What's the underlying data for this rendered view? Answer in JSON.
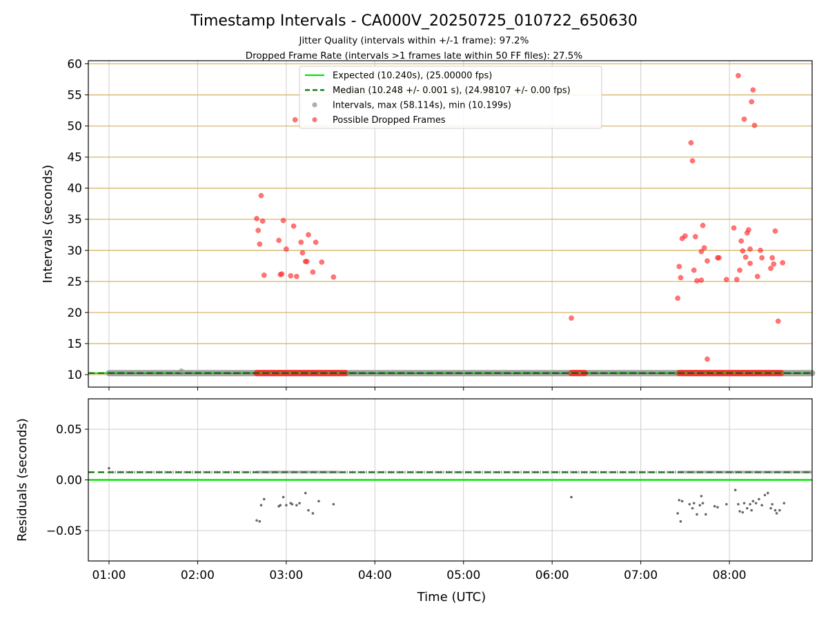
{
  "title": "Timestamp Intervals - CA000V_20250725_010722_650630",
  "subtitle_lines": [
    "Jitter Quality (intervals within +/-1 frame): 97.2%",
    "Dropped Frame Rate (intervals >1 frames late within 50 FF files): 27.5%"
  ],
  "colors": {
    "expected": "#00e600",
    "median": "#007000",
    "intervals": "#9a9a9a",
    "dropped": "#ff2a2a",
    "residual_points": "#666666",
    "gold_grid": "#d6b66a",
    "grid": "#cccccc"
  },
  "chart_data": [
    {
      "type": "scatter",
      "panel": "intervals",
      "ylabel": "Intervals (seconds)",
      "xlabel": "",
      "ylim": [
        8,
        60.5
      ],
      "xlim": [
        "00:46",
        "08:56"
      ],
      "yticks": [
        10,
        15,
        20,
        25,
        30,
        35,
        40,
        45,
        50,
        55,
        60
      ],
      "grid": true,
      "legend_position": "top-center",
      "expected_value": 10.24,
      "median_value": 10.248,
      "legend": [
        {
          "key": "expected",
          "label": "Expected (10.240s), (25.00000 fps)"
        },
        {
          "key": "median",
          "label": "Median (10.248 +/- 0.001 s), (24.98107 +/- 0.00 fps)"
        },
        {
          "key": "intervals",
          "label": "Intervals, max (58.114s), min (10.199s)"
        },
        {
          "key": "dropped",
          "label": "Possible Dropped Frames"
        }
      ],
      "baseline_segments": [
        {
          "series": "intervals",
          "x": [
            "01:00",
            "08:56"
          ],
          "y": 10.25
        },
        {
          "series": "dropped",
          "x": [
            "02:40",
            "03:40"
          ],
          "y": 10.26
        },
        {
          "series": "dropped",
          "x": [
            "06:13",
            "06:22"
          ],
          "y": 10.26
        },
        {
          "series": "dropped",
          "x": [
            "07:26",
            "08:35"
          ],
          "y": 10.26
        }
      ],
      "interval_points": [
        {
          "x": "01:49",
          "y": 10.6
        }
      ],
      "dropped_points": [
        {
          "x": "02:40",
          "y": 35.1
        },
        {
          "x": "02:41",
          "y": 33.2
        },
        {
          "x": "02:42",
          "y": 31.0
        },
        {
          "x": "02:43",
          "y": 38.8
        },
        {
          "x": "02:44",
          "y": 34.7
        },
        {
          "x": "02:45",
          "y": 26.0
        },
        {
          "x": "02:55",
          "y": 31.6
        },
        {
          "x": "02:56",
          "y": 26.1
        },
        {
          "x": "02:57",
          "y": 26.2
        },
        {
          "x": "02:58",
          "y": 34.8
        },
        {
          "x": "03:00",
          "y": 30.2
        },
        {
          "x": "03:03",
          "y": 25.9
        },
        {
          "x": "03:05",
          "y": 33.9
        },
        {
          "x": "03:06",
          "y": 51.0
        },
        {
          "x": "03:07",
          "y": 25.8
        },
        {
          "x": "03:10",
          "y": 31.3
        },
        {
          "x": "03:11",
          "y": 29.6
        },
        {
          "x": "03:13",
          "y": 28.2
        },
        {
          "x": "03:14",
          "y": 28.2
        },
        {
          "x": "03:15",
          "y": 32.5
        },
        {
          "x": "03:18",
          "y": 26.5
        },
        {
          "x": "03:20",
          "y": 31.3
        },
        {
          "x": "03:24",
          "y": 28.1
        },
        {
          "x": "03:32",
          "y": 25.7
        },
        {
          "x": "06:13",
          "y": 19.1
        },
        {
          "x": "07:25",
          "y": 22.3
        },
        {
          "x": "07:26",
          "y": 27.4
        },
        {
          "x": "07:27",
          "y": 25.6
        },
        {
          "x": "07:28",
          "y": 31.9
        },
        {
          "x": "07:30",
          "y": 32.3
        },
        {
          "x": "07:34",
          "y": 47.3
        },
        {
          "x": "07:35",
          "y": 44.4
        },
        {
          "x": "07:36",
          "y": 26.8
        },
        {
          "x": "07:37",
          "y": 32.2
        },
        {
          "x": "07:38",
          "y": 25.1
        },
        {
          "x": "07:41",
          "y": 25.2
        },
        {
          "x": "07:41",
          "y": 29.8
        },
        {
          "x": "07:42",
          "y": 34.0
        },
        {
          "x": "07:43",
          "y": 30.4
        },
        {
          "x": "07:45",
          "y": 12.5
        },
        {
          "x": "07:45",
          "y": 28.3
        },
        {
          "x": "07:52",
          "y": 28.8
        },
        {
          "x": "07:53",
          "y": 28.8
        },
        {
          "x": "07:58",
          "y": 25.3
        },
        {
          "x": "08:03",
          "y": 33.6
        },
        {
          "x": "08:05",
          "y": 25.3
        },
        {
          "x": "08:06",
          "y": 58.1
        },
        {
          "x": "08:07",
          "y": 26.8
        },
        {
          "x": "08:08",
          "y": 31.5
        },
        {
          "x": "08:09",
          "y": 29.9
        },
        {
          "x": "08:10",
          "y": 51.1
        },
        {
          "x": "08:11",
          "y": 28.9
        },
        {
          "x": "08:12",
          "y": 32.8
        },
        {
          "x": "08:13",
          "y": 33.3
        },
        {
          "x": "08:14",
          "y": 30.2
        },
        {
          "x": "08:14",
          "y": 27.9
        },
        {
          "x": "08:15",
          "y": 53.9
        },
        {
          "x": "08:16",
          "y": 55.8
        },
        {
          "x": "08:17",
          "y": 50.1
        },
        {
          "x": "08:19",
          "y": 25.8
        },
        {
          "x": "08:21",
          "y": 30.0
        },
        {
          "x": "08:22",
          "y": 28.8
        },
        {
          "x": "08:28",
          "y": 27.1
        },
        {
          "x": "08:29",
          "y": 28.8
        },
        {
          "x": "08:30",
          "y": 27.8
        },
        {
          "x": "08:31",
          "y": 33.1
        },
        {
          "x": "08:33",
          "y": 18.6
        },
        {
          "x": "08:36",
          "y": 28.0
        }
      ]
    },
    {
      "type": "scatter",
      "panel": "residuals",
      "ylabel": "Residuals (seconds)",
      "xlabel": "Time (UTC)",
      "ylim": [
        -0.08,
        0.08
      ],
      "xlim": [
        "00:46",
        "08:56"
      ],
      "yticks": [
        -0.05,
        0,
        0.05
      ],
      "ytick_labels": [
        "−0.05",
        "0.00",
        "0.05"
      ],
      "xticks": [
        "01:00",
        "02:00",
        "03:00",
        "04:00",
        "05:00",
        "06:00",
        "07:00",
        "08:00"
      ],
      "grid": true,
      "expected_value": 0.0,
      "median_value": 0.0076,
      "residual_bands": [
        {
          "x": [
            "01:00",
            "08:56"
          ],
          "y": 0.0076
        },
        {
          "x": [
            "02:40",
            "03:35"
          ],
          "y": 0.0078
        },
        {
          "x": [
            "07:26",
            "08:56"
          ],
          "y": 0.0078
        }
      ],
      "residual_points": [
        {
          "x": "01:00",
          "y": 0.0115
        },
        {
          "x": "02:40",
          "y": -0.04
        },
        {
          "x": "02:42",
          "y": -0.041
        },
        {
          "x": "02:43",
          "y": -0.025
        },
        {
          "x": "02:45",
          "y": -0.019
        },
        {
          "x": "02:55",
          "y": -0.026
        },
        {
          "x": "02:56",
          "y": -0.025
        },
        {
          "x": "02:58",
          "y": -0.017
        },
        {
          "x": "03:00",
          "y": -0.025
        },
        {
          "x": "03:03",
          "y": -0.023
        },
        {
          "x": "03:04",
          "y": -0.024
        },
        {
          "x": "03:07",
          "y": -0.025
        },
        {
          "x": "03:09",
          "y": -0.023
        },
        {
          "x": "03:13",
          "y": -0.013
        },
        {
          "x": "03:15",
          "y": -0.03
        },
        {
          "x": "03:18",
          "y": -0.033
        },
        {
          "x": "03:22",
          "y": -0.021
        },
        {
          "x": "03:32",
          "y": -0.024
        },
        {
          "x": "06:13",
          "y": -0.017
        },
        {
          "x": "07:25",
          "y": -0.033
        },
        {
          "x": "07:26",
          "y": -0.02
        },
        {
          "x": "07:27",
          "y": -0.041
        },
        {
          "x": "07:28",
          "y": -0.021
        },
        {
          "x": "07:33",
          "y": -0.024
        },
        {
          "x": "07:35",
          "y": -0.028
        },
        {
          "x": "07:36",
          "y": -0.023
        },
        {
          "x": "07:38",
          "y": -0.034
        },
        {
          "x": "07:40",
          "y": -0.025
        },
        {
          "x": "07:41",
          "y": -0.016
        },
        {
          "x": "07:42",
          "y": -0.023
        },
        {
          "x": "07:44",
          "y": -0.034
        },
        {
          "x": "07:50",
          "y": -0.026
        },
        {
          "x": "07:52",
          "y": -0.027
        },
        {
          "x": "07:58",
          "y": -0.024
        },
        {
          "x": "08:04",
          "y": -0.01
        },
        {
          "x": "08:06",
          "y": -0.024
        },
        {
          "x": "08:07",
          "y": -0.031
        },
        {
          "x": "08:09",
          "y": -0.032
        },
        {
          "x": "08:10",
          "y": -0.023
        },
        {
          "x": "08:12",
          "y": -0.028
        },
        {
          "x": "08:14",
          "y": -0.024
        },
        {
          "x": "08:15",
          "y": -0.03
        },
        {
          "x": "08:16",
          "y": -0.021
        },
        {
          "x": "08:18",
          "y": -0.023
        },
        {
          "x": "08:20",
          "y": -0.019
        },
        {
          "x": "08:22",
          "y": -0.025
        },
        {
          "x": "08:24",
          "y": -0.015
        },
        {
          "x": "08:26",
          "y": -0.013
        },
        {
          "x": "08:28",
          "y": -0.028
        },
        {
          "x": "08:29",
          "y": -0.024
        },
        {
          "x": "08:31",
          "y": -0.03
        },
        {
          "x": "08:32",
          "y": -0.033
        },
        {
          "x": "08:34",
          "y": -0.03
        },
        {
          "x": "08:37",
          "y": -0.023
        }
      ]
    }
  ]
}
